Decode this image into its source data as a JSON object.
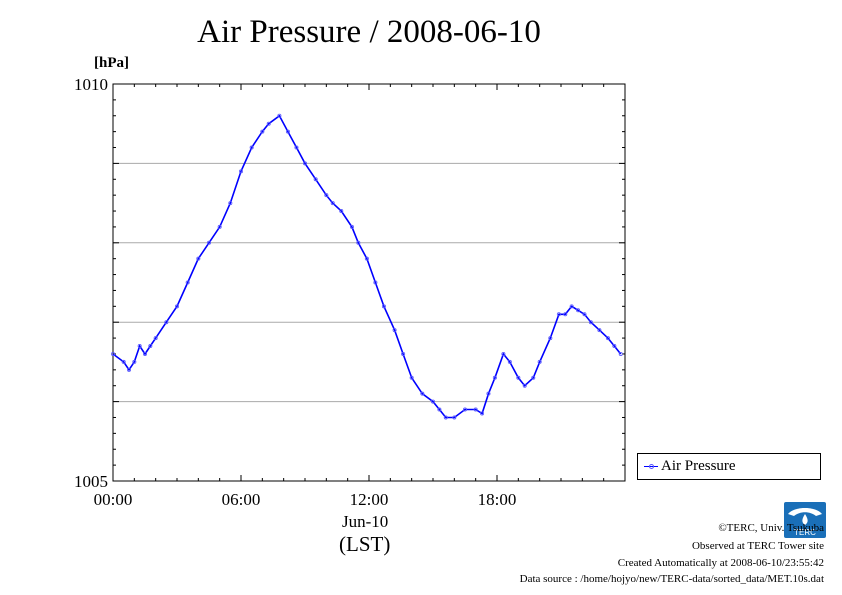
{
  "header": {
    "title": "Air Pressure / 2008-06-10",
    "unit": "[hPa]"
  },
  "legend": {
    "label": "Air Pressure"
  },
  "axis": {
    "date_label": "Jun-10",
    "timezone_label": "(LST)"
  },
  "credits": {
    "copyright": "©TERC, Univ. Tsukuba",
    "observed": "Observed at TERC Tower site",
    "created": "Created Automatically at 2008-06-10/23:55:42",
    "source": "Data source : /home/hojyo/new/TERC-data/sorted_data/MET.10s.dat"
  },
  "logo": {
    "text": "TERC"
  },
  "colors": {
    "series": "#0000ff",
    "points": "#5a5aff",
    "grid": "#aaaaaa"
  },
  "chart_data": {
    "type": "line",
    "title": "Air Pressure / 2008-06-10",
    "ylabel": "[hPa]",
    "xlabel": "Jun-10 (LST)",
    "x_unit": "hour",
    "xlim": [
      0,
      24
    ],
    "ylim": [
      1005,
      1010
    ],
    "xticks": [
      0,
      6,
      12,
      18
    ],
    "xtick_labels": [
      "00:00",
      "06:00",
      "12:00",
      "18:00"
    ],
    "yticks": [
      1005,
      1010
    ],
    "ytick_labels": [
      "1005",
      "1010"
    ],
    "grid": true,
    "legend_position": "right",
    "series": [
      {
        "name": "Air Pressure",
        "x": [
          0,
          0.5,
          0.75,
          1.0,
          1.25,
          1.5,
          1.75,
          2.0,
          2.5,
          3.0,
          3.5,
          4.0,
          4.5,
          5.0,
          5.5,
          6.0,
          6.5,
          7.0,
          7.3,
          7.8,
          8.2,
          8.6,
          9.0,
          9.5,
          10.0,
          10.3,
          10.7,
          11.2,
          11.5,
          11.9,
          12.3,
          12.7,
          13.2,
          13.6,
          14.0,
          14.5,
          15.0,
          15.3,
          15.6,
          16.0,
          16.5,
          17.0,
          17.3,
          17.6,
          17.9,
          18.3,
          18.6,
          19.0,
          19.3,
          19.7,
          20.0,
          20.5,
          20.9,
          21.2,
          21.5,
          21.8,
          22.1,
          22.4,
          22.8,
          23.2,
          23.5,
          23.8
        ],
        "y": [
          1006.6,
          1006.5,
          1006.4,
          1006.5,
          1006.7,
          1006.6,
          1006.7,
          1006.8,
          1007.0,
          1007.2,
          1007.5,
          1007.8,
          1008.0,
          1008.2,
          1008.5,
          1008.9,
          1009.2,
          1009.4,
          1009.5,
          1009.6,
          1009.4,
          1009.2,
          1009.0,
          1008.8,
          1008.6,
          1008.5,
          1008.4,
          1008.2,
          1008.0,
          1007.8,
          1007.5,
          1007.2,
          1006.9,
          1006.6,
          1006.3,
          1006.1,
          1006.0,
          1005.9,
          1005.8,
          1005.8,
          1005.9,
          1005.9,
          1005.85,
          1006.1,
          1006.3,
          1006.6,
          1006.5,
          1006.3,
          1006.2,
          1006.3,
          1006.5,
          1006.8,
          1007.1,
          1007.1,
          1007.2,
          1007.15,
          1007.1,
          1007.0,
          1006.9,
          1006.8,
          1006.7,
          1006.6
        ]
      }
    ]
  }
}
